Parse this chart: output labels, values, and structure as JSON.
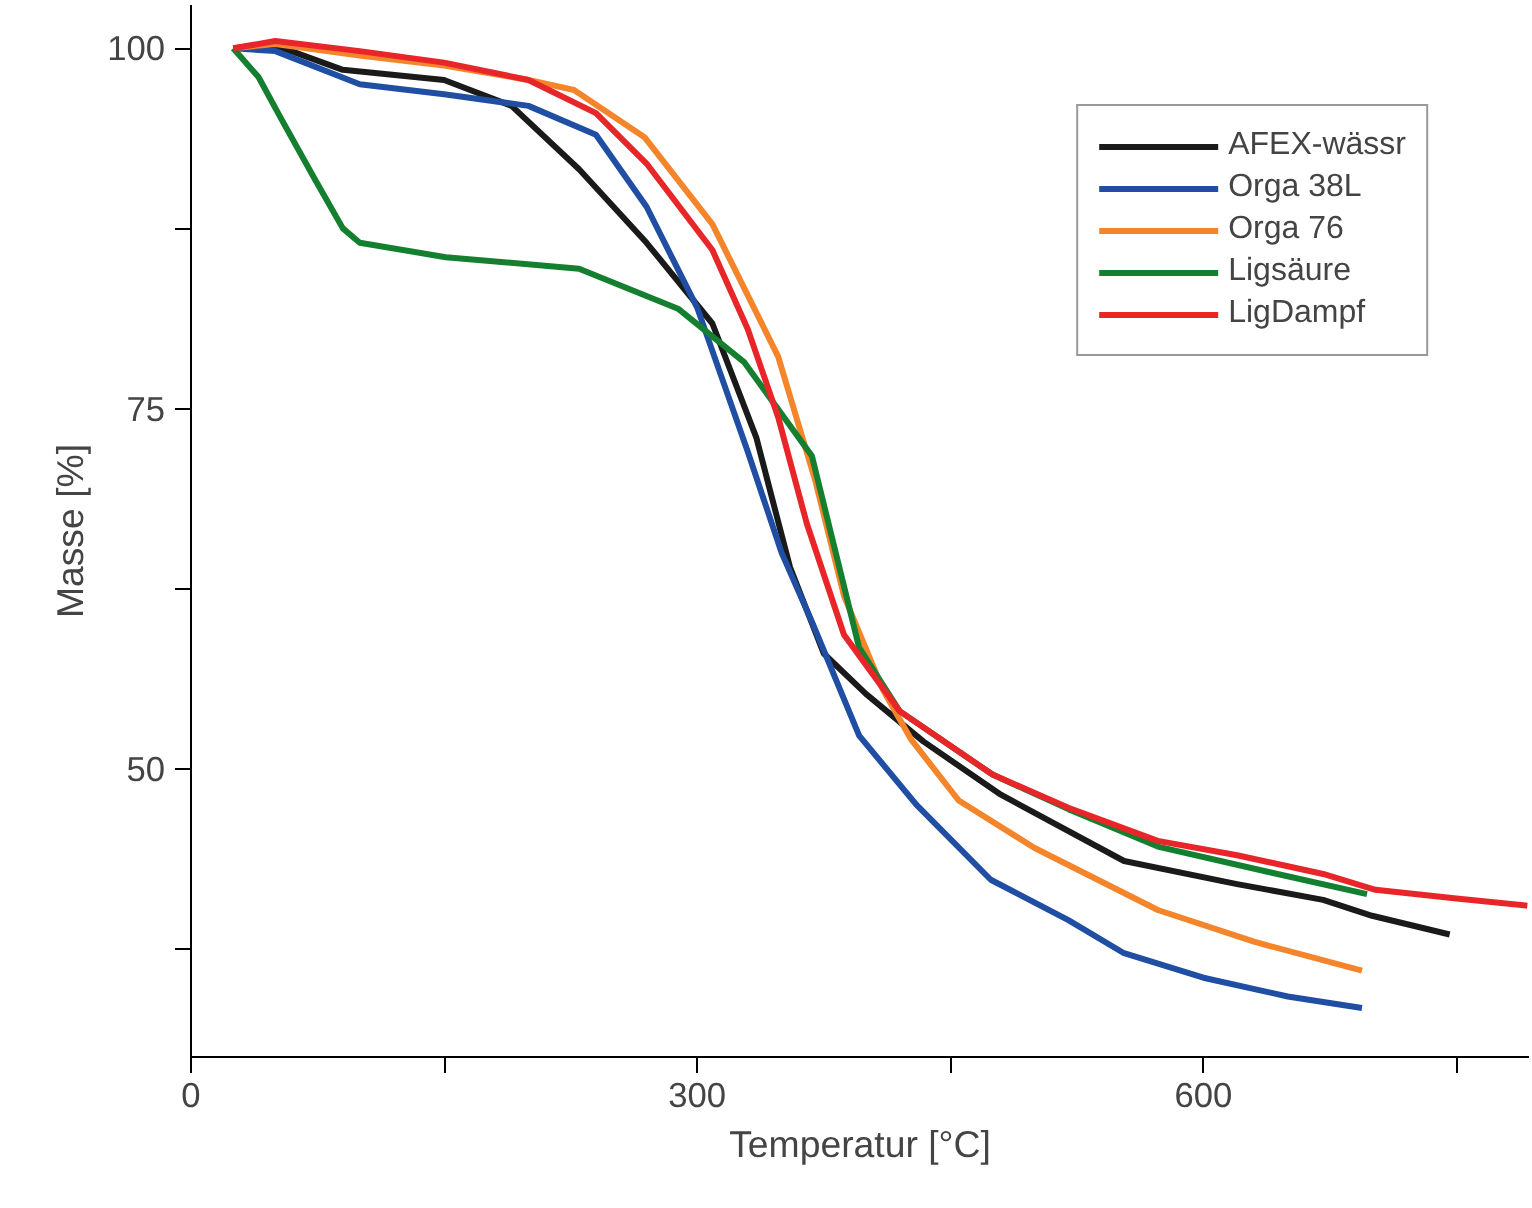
{
  "chart_data": {
    "type": "line",
    "xlabel": "Temperatur [°C]",
    "ylabel": "Masse [%]",
    "xlim": [
      0,
      793
    ],
    "ylim": [
      30,
      103
    ],
    "xticks": [
      0,
      {
        "value": 150,
        "label": null
      },
      300,
      {
        "value": 450,
        "label": null
      },
      600,
      {
        "value": 750,
        "label": null
      }
    ],
    "yticks": [
      {
        "value": 37.5,
        "label": null
      },
      50,
      {
        "value": 62.5,
        "label": null
      },
      75,
      {
        "value": 87.5,
        "label": null
      },
      100
    ],
    "grid": false,
    "legend": "top right",
    "marker": "none",
    "line_style": "solid",
    "series": [
      {
        "name": "AFEX-wässr",
        "color": "#1a1a1a",
        "x": [
          25,
          50,
          90,
          150,
          190,
          230,
          270,
          309,
          335,
          355,
          375,
          400,
          434,
          480,
          553,
          620,
          671,
          700,
          746
        ],
        "values": [
          100,
          100.2,
          98.5,
          97.8,
          96,
          91.6,
          86.5,
          80.9,
          73,
          64,
          58,
          55.2,
          51.9,
          48.2,
          43.6,
          42,
          40.9,
          39.8,
          38.5
        ]
      },
      {
        "name": "Orga 38L",
        "color": "#1f4ea3",
        "x": [
          25,
          50,
          100,
          150,
          200,
          240,
          270,
          300,
          330,
          350,
          368,
          396,
          430,
          474,
          520,
          553,
          600,
          650,
          694
        ],
        "values": [
          100,
          99.8,
          97.5,
          96.8,
          96,
          94,
          89,
          82,
          72,
          65,
          60.2,
          52.3,
          47.5,
          42.3,
          39.5,
          37.2,
          35.5,
          34.2,
          33.4
        ]
      },
      {
        "name": "Orga 76",
        "color": "#f4852a",
        "x": [
          25,
          50,
          100,
          150,
          200,
          227,
          269,
          309,
          348,
          370,
          387,
          410,
          427,
          455,
          500,
          573,
          630,
          694
        ],
        "values": [
          100,
          100.3,
          99.5,
          98.8,
          97.8,
          97.1,
          93.8,
          87.8,
          78.6,
          70,
          62,
          55.5,
          52,
          47.8,
          44.5,
          40.2,
          38,
          36
        ]
      },
      {
        "name": "Ligsäure",
        "color": "#157f30",
        "x": [
          25,
          40,
          53,
          73,
          90,
          100,
          151,
          230,
          289,
          328,
          368,
          380,
          396,
          420,
          475,
          520,
          573,
          640,
          697
        ],
        "values": [
          100,
          98,
          95.2,
          91,
          87.5,
          86.5,
          85.5,
          84.7,
          81.9,
          78.2,
          71.7,
          66,
          58.4,
          54,
          49.6,
          47.2,
          44.6,
          42.8,
          41.3
        ]
      },
      {
        "name": "LigDampf",
        "color": "#e8262a",
        "x": [
          25,
          50,
          100,
          150,
          200,
          240,
          270,
          309,
          330,
          348,
          365,
          387,
          420,
          475,
          520,
          573,
          620,
          671,
          702,
          750,
          792
        ],
        "values": [
          100,
          100.5,
          99.8,
          99,
          97.8,
          95.5,
          92,
          86,
          80.5,
          74.4,
          67,
          59.3,
          54,
          49.6,
          47.3,
          45,
          44,
          42.7,
          41.6,
          41,
          40.5
        ]
      }
    ]
  }
}
